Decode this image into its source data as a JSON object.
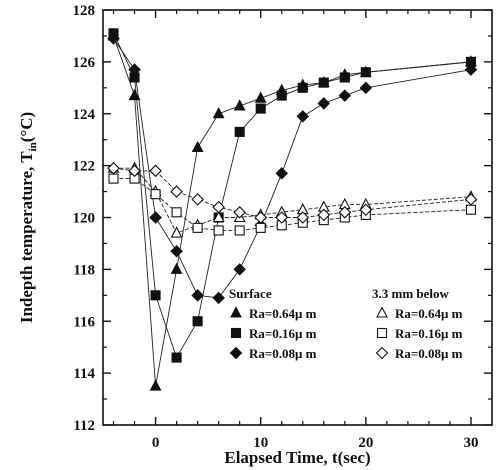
{
  "chart_data": {
    "type": "scatter",
    "xlabel": "Elapsed Time, t(sec)",
    "ylabel": "Indepth temperature, T",
    "ylabel_subscript": "in",
    "ylabel_unit": "(°C)",
    "xlim": [
      -5,
      32
    ],
    "ylim": [
      112,
      128
    ],
    "xticks": [
      0,
      10,
      20,
      30
    ],
    "yticks": [
      112,
      114,
      116,
      118,
      120,
      122,
      124,
      126,
      128
    ],
    "grid": false,
    "legend": {
      "position": "bottom-right",
      "group_titles": [
        "Surface",
        "3.3 mm below"
      ]
    },
    "series": [
      {
        "name": "Ra=0.64μ m",
        "group": "Surface",
        "marker": "triangle",
        "filled": true,
        "x": [
          -4,
          -2,
          0,
          2,
          4,
          6,
          8,
          10,
          12,
          14,
          16,
          18,
          20,
          30
        ],
        "y": [
          127.0,
          124.7,
          113.5,
          118.0,
          122.7,
          124.0,
          124.3,
          124.6,
          124.9,
          125.1,
          125.2,
          125.5,
          125.6,
          126.0
        ]
      },
      {
        "name": "Ra=0.16μ m",
        "group": "Surface",
        "marker": "square",
        "filled": true,
        "x": [
          -4,
          -2,
          0,
          2,
          4,
          6,
          8,
          10,
          12,
          14,
          16,
          18,
          20,
          30
        ],
        "y": [
          127.1,
          125.4,
          117.0,
          114.6,
          116.0,
          120.0,
          123.3,
          124.2,
          124.7,
          125.0,
          125.2,
          125.4,
          125.6,
          126.0
        ]
      },
      {
        "name": "Ra=0.08μ m",
        "group": "Surface",
        "marker": "diamond",
        "filled": true,
        "x": [
          -4,
          -2,
          0,
          2,
          4,
          6,
          8,
          10,
          12,
          14,
          16,
          18,
          20,
          30
        ],
        "y": [
          126.9,
          125.7,
          120.0,
          118.7,
          117.0,
          116.9,
          118.0,
          119.7,
          121.7,
          123.9,
          124.4,
          124.7,
          125.0,
          125.7
        ]
      },
      {
        "name": "Ra=0.64μ m",
        "group": "3.3 mm below",
        "marker": "triangle",
        "filled": false,
        "x": [
          -4,
          -2,
          0,
          2,
          4,
          6,
          8,
          10,
          12,
          14,
          16,
          18,
          20,
          30
        ],
        "y": [
          121.9,
          121.9,
          121.0,
          119.4,
          119.7,
          120.0,
          120.0,
          120.1,
          120.2,
          120.3,
          120.4,
          120.5,
          120.5,
          120.8
        ]
      },
      {
        "name": "Ra=0.16μ m",
        "group": "3.3 mm below",
        "marker": "square",
        "filled": false,
        "x": [
          -4,
          -2,
          0,
          2,
          4,
          6,
          8,
          10,
          12,
          14,
          16,
          18,
          20,
          30
        ],
        "y": [
          121.5,
          121.5,
          120.9,
          120.2,
          119.6,
          119.5,
          119.5,
          119.6,
          119.7,
          119.8,
          119.9,
          120.0,
          120.1,
          120.3
        ]
      },
      {
        "name": "Ra=0.08μ m",
        "group": "3.3 mm below",
        "marker": "diamond",
        "filled": false,
        "x": [
          -4,
          -2,
          0,
          2,
          4,
          6,
          8,
          10,
          12,
          14,
          16,
          18,
          20,
          30
        ],
        "y": [
          121.9,
          121.8,
          121.8,
          121.0,
          120.7,
          120.4,
          120.2,
          120.0,
          120.0,
          120.0,
          120.1,
          120.2,
          120.3,
          120.7
        ]
      }
    ]
  }
}
